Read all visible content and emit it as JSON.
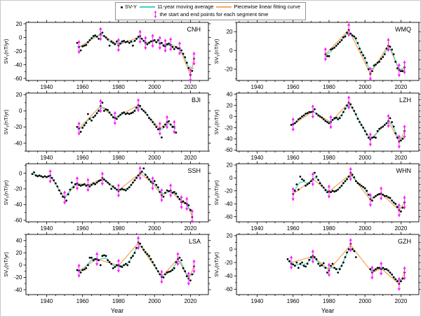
{
  "chart_data": {
    "type": "scatter",
    "xlabel": "Year",
    "ylabel_parts": {
      "base": "SV",
      "sub": "Y",
      "unit": "(nT/yr)"
    },
    "xlim": [
      1928.5,
      2030
    ],
    "x_major_ticks": [
      1940,
      1960,
      1980,
      2000,
      2020
    ],
    "x_minor_step": 5,
    "y_minor_step": 10,
    "grid": false,
    "legend_position": "top-center",
    "colors": {
      "scatter": "#000000",
      "moving_average": "#3FD2C7",
      "piecewise": "#FFA65C",
      "segment_marker": "#FF19FF",
      "axis": "#000000"
    },
    "legend": [
      {
        "label": "SV-Y",
        "marker": "dot"
      },
      {
        "label": "11-year moving average",
        "marker": "line"
      },
      {
        "label": "Piecewise linear fitting curve",
        "marker": "line"
      },
      {
        "label": "the start and end points for each segment time",
        "marker": "double-arrow"
      }
    ],
    "panels": [
      {
        "station": "CNH",
        "ylim": [
          -63,
          22
        ],
        "yticks": [
          20,
          0,
          -20,
          -40,
          -60
        ],
        "segments": [
          {
            "start_year": 1957,
            "values": [
              -8,
              -14,
              -19,
              -13,
              -12,
              -11,
              -7,
              -4,
              -1,
              2,
              3,
              1,
              -2,
              5,
              7,
              2,
              0,
              -3,
              -12,
              -6,
              -8,
              -10,
              -6,
              -12,
              -9,
              -6,
              -5,
              -7,
              -6,
              -8,
              -6,
              -12,
              -5,
              -2,
              1,
              2,
              -2,
              -5,
              -8,
              -10,
              -8,
              -6,
              -5,
              -4,
              -7,
              -4,
              -9,
              -8,
              -12,
              -13,
              -10,
              -9,
              -11,
              -14,
              -17,
              -14,
              -16,
              -16,
              -19,
              -24,
              -29,
              -37,
              -45,
              -55,
              -49,
              -31
            ]
          }
        ],
        "breakpoints": {
          "years": [
            1958,
            1970,
            1980,
            1992,
            1995,
            1999,
            2003,
            2006,
            2009,
            2014,
            2020,
            2022
          ],
          "values": [
            -14,
            5,
            -11,
            1,
            -8,
            -5,
            -8,
            -12,
            -10,
            -16,
            -55,
            -31
          ]
        }
      },
      {
        "station": "WMQ",
        "ylim": [
          -32,
          30
        ],
        "yticks": [
          20,
          0,
          -20
        ],
        "segments": [
          {
            "start_year": 1978,
            "values": [
              -4,
              -6,
              -6,
              1,
              2,
              3,
              5,
              7,
              9,
              11,
              14,
              15,
              19,
              22,
              18,
              16,
              15,
              13,
              8,
              2,
              -2,
              -5,
              -8,
              -13,
              -20,
              -25,
              -22,
              -16,
              -15,
              -13,
              -12,
              -9,
              -7,
              -4,
              2,
              5,
              4,
              1,
              -4,
              -12,
              -19,
              -21,
              -22,
              -22,
              -18
            ]
          }
        ],
        "breakpoints": {
          "years": [
            1978,
            1991,
            2003,
            2013,
            2019,
            2022
          ],
          "values": [
            -4,
            22,
            -25,
            6,
            -21,
            -18
          ]
        }
      },
      {
        "station": "BJI",
        "ylim": [
          -50,
          22
        ],
        "yticks": [
          20,
          0,
          -20,
          -40
        ],
        "segments": [
          {
            "start_year": 1957,
            "values": [
              -20,
              -22,
              -26,
              -21,
              -18,
              -15,
              -4,
              -10,
              -12,
              -8,
              -6,
              -3,
              0,
              6,
              10,
              0,
              2,
              1,
              -2,
              -5,
              -8,
              -9,
              -10,
              -7,
              -5,
              -3,
              -2,
              -4,
              -3,
              -4,
              -3,
              -2,
              0,
              4,
              7,
              6,
              2,
              0,
              -2,
              -5,
              -9,
              -11,
              -14,
              -17,
              -20,
              -23,
              -22,
              -33,
              -20,
              -17,
              -14,
              -13,
              -17,
              -20,
              -20,
              -27
            ]
          }
        ],
        "breakpoints": {
          "years": [
            1958,
            1970,
            1978,
            1991,
            2003,
            2007,
            2011
          ],
          "values": [
            -22,
            6,
            -9,
            7,
            -22,
            -14,
            -20
          ]
        }
      },
      {
        "station": "LZH",
        "ylim": [
          -62,
          42
        ],
        "yticks": [
          40,
          20,
          0,
          -20,
          -40,
          -60
        ],
        "segments": [
          {
            "start_year": 1959,
            "values": [
              -15,
              -14,
              -12,
              -9,
              -5,
              -3,
              0,
              2,
              5,
              6,
              8,
              8,
              9,
              13,
              5,
              2,
              0,
              -2,
              -5,
              -8,
              -10,
              -12,
              -10,
              -6,
              -3,
              -2,
              -5,
              -3,
              2,
              8,
              14,
              20,
              25,
              22,
              16,
              10,
              4,
              -4,
              -10,
              -15,
              -20,
              -26,
              -32,
              -38,
              -41,
              -38,
              -37,
              -38,
              -26,
              -22,
              -20,
              -18,
              -15,
              -12,
              -8,
              -3,
              -10,
              -18,
              -30,
              -38,
              -45,
              -43,
              -40,
              -26
            ]
          }
        ],
        "breakpoints": {
          "years": [
            1960,
            1971,
            1981,
            1991,
            2003,
            2013,
            2019,
            2022
          ],
          "values": [
            -14,
            9,
            -10,
            25,
            -41,
            -8,
            -45,
            -27
          ]
        }
      },
      {
        "station": "SSH",
        "ylim": [
          -62,
          12
        ],
        "yticks": [
          0,
          -20,
          -40,
          -60
        ],
        "segments": [
          {
            "start_year": 1932,
            "values": [
              -1,
              1,
              -3,
              -4,
              -3,
              -4,
              -5,
              -4,
              -5,
              -4,
              -3,
              -6,
              -9,
              -13,
              -17,
              -22,
              -26,
              -30,
              -31,
              -35,
              -27,
              -21,
              -12,
              -18,
              -14,
              -13,
              -15,
              -16,
              -15,
              -14,
              -16,
              -15,
              -17,
              -15,
              -13,
              -14,
              -12,
              -10,
              -9,
              -6,
              -8,
              -10,
              -12,
              -14,
              -20,
              -17,
              -19,
              -21,
              -23,
              -21,
              -20,
              -21,
              -22,
              -20,
              -18,
              -15,
              -12,
              -9,
              -6,
              -3,
              0,
              2,
              6,
              -2,
              -5,
              -8,
              -11,
              -13,
              -10,
              -15,
              -18,
              -24,
              -28,
              -30,
              -25,
              -22,
              -23,
              -22,
              -25,
              -24,
              -26,
              -30,
              -33,
              -37,
              -36,
              -38,
              -39,
              -41,
              -47,
              -56
            ]
          }
        ],
        "breakpoints": {
          "years": [
            1942,
            1950,
            1957,
            1963,
            1971,
            1980,
            1992,
            1999,
            2004,
            2009,
            2015,
            2018,
            2021
          ],
          "values": [
            -4,
            -31,
            -13,
            -15,
            -7,
            -22,
            0,
            -13,
            -28,
            -22,
            -37,
            -39,
            -55
          ]
        }
      },
      {
        "station": "WHN",
        "ylim": [
          -68,
          22
        ],
        "yticks": [
          20,
          0,
          -20,
          -40,
          -60
        ],
        "segments": [
          {
            "start_year": 1960,
            "values": [
              -25,
              -20,
              -10,
              -18,
              2,
              -2,
              -4,
              -12,
              -10,
              -8,
              -5,
              -2,
              8,
              2,
              -3,
              -8,
              -12,
              -15,
              -19,
              -22,
              -21,
              -22,
              -20,
              -21,
              -20,
              -18,
              -15,
              -12,
              -8,
              -5,
              -2,
              2,
              8,
              5,
              1,
              -5,
              -8,
              -10,
              -12,
              -14,
              -16,
              -20,
              -26,
              -33,
              -35,
              -30,
              -28,
              -26,
              -25,
              -24,
              -26,
              -28,
              -28,
              -30,
              -31,
              -35,
              -38,
              -40,
              -45,
              -50,
              -52,
              -46,
              -38
            ]
          }
        ],
        "breakpoints": {
          "years": [
            1960,
            1971,
            1980,
            1992,
            2003,
            2009,
            2019,
            2022
          ],
          "values": [
            -25,
            -2,
            -21,
            6,
            -34,
            -24,
            -50,
            -38
          ]
        }
      },
      {
        "station": "LSA",
        "ylim": [
          -48,
          50
        ],
        "yticks": [
          40,
          20,
          0,
          -20,
          -40
        ],
        "segments": [
          {
            "start_year": 1957,
            "values": [
              -8,
              -9,
              -12,
              -8,
              -7,
              -5,
              0,
              12,
              12,
              8,
              10,
              10,
              8,
              0,
              15,
              16,
              15,
              8,
              5,
              2,
              -5,
              -3,
              0,
              0,
              -2,
              -3,
              0,
              2,
              0,
              5,
              12,
              15,
              20,
              28,
              37,
              35,
              30,
              25,
              21,
              18,
              15,
              10,
              5,
              0,
              -5,
              -10,
              -15,
              -19,
              -20,
              -15,
              -12,
              -11,
              -10,
              -8,
              -5,
              5,
              10,
              12,
              8,
              -5,
              -10,
              -18,
              -22,
              -25,
              -15,
              -2
            ]
          }
        ],
        "breakpoints": {
          "years": [
            1958,
            1968,
            1980,
            1991,
            2004,
            2013,
            2019,
            2022
          ],
          "values": [
            -9,
            10,
            -1,
            36,
            -19,
            10,
            -22,
            -2
          ]
        }
      },
      {
        "station": "GZH",
        "ylim": [
          -68,
          22
        ],
        "yticks": [
          20,
          0,
          -20,
          -40,
          -60
        ],
        "segments": [
          {
            "start_year": 1957,
            "values": [
              -15,
              -18,
              -22,
              -23,
              -25,
              -20,
              -28,
              -22,
              -20,
              -25,
              -26,
              -22,
              -16,
              -12,
              -10,
              -12,
              -15,
              -22,
              -25,
              -24,
              -21,
              -28,
              -35,
              -32,
              -25,
              -22,
              -28,
              -30,
              -35,
              -30,
              -25,
              -20,
              -12,
              -5,
              0,
              8,
              0,
              -3,
              -12
            ]
          },
          {
            "start_year": 2003,
            "values": [
              -30,
              -35,
              -32,
              -30,
              -28,
              -28,
              -30,
              -28,
              -30,
              -30,
              -32,
              -35,
              -38,
              -42,
              -45,
              -48,
              -52,
              -48,
              -44,
              -35
            ]
          }
        ],
        "breakpoints": {
          "years": [
            1959,
            1971,
            1980,
            1992,
            2004,
            2009,
            2019,
            2022
          ],
          "values": [
            -20,
            -11,
            -31,
            6,
            -35,
            -29,
            -52,
            -36
          ]
        }
      }
    ]
  }
}
